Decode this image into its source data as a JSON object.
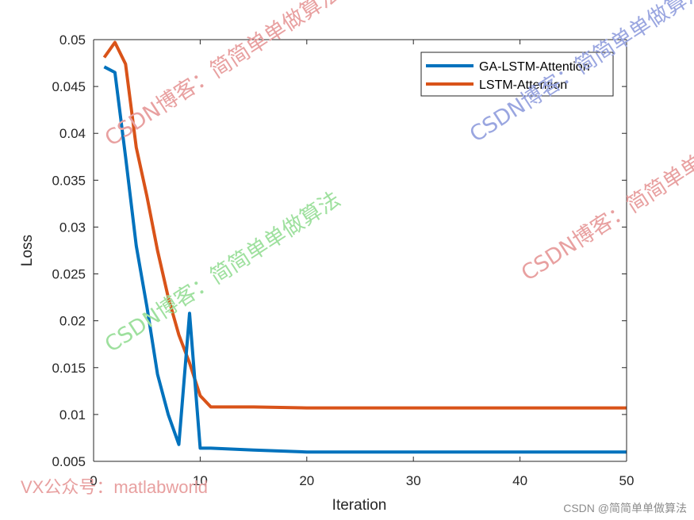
{
  "colors": {
    "ga_series": "#0072BD",
    "lstm_series": "#D95319",
    "axis": "#262626",
    "watermark_red": "#e8a0a0",
    "watermark_green": "#9ee09e",
    "watermark_blue": "#9aa6e0"
  },
  "chart_data": {
    "type": "line",
    "xlabel": "Iteration",
    "ylabel": "Loss",
    "xlim": [
      0,
      50
    ],
    "ylim": [
      0.005,
      0.05
    ],
    "xticks": [
      0,
      10,
      20,
      30,
      40,
      50
    ],
    "xtick_labels": [
      "0",
      "10",
      "20",
      "30",
      "40",
      "50"
    ],
    "yticks": [
      0.005,
      0.01,
      0.015,
      0.02,
      0.025,
      0.03,
      0.035,
      0.04,
      0.045,
      0.05
    ],
    "ytick_labels": [
      "0.005",
      "0.01",
      "0.015",
      "0.02",
      "0.025",
      "0.03",
      "0.035",
      "0.04",
      "0.045",
      "0.05"
    ],
    "grid": false,
    "legend_position": "top-right",
    "series": [
      {
        "name": "GA-LSTM-Attention",
        "color": "#0072BD",
        "x": [
          1,
          2,
          3,
          4,
          5,
          6,
          7,
          8,
          9,
          10,
          11,
          15,
          20,
          30,
          40,
          50
        ],
        "y": [
          0.0471,
          0.0465,
          0.0375,
          0.028,
          0.0215,
          0.0143,
          0.01,
          0.0068,
          0.0208,
          0.0064,
          0.0064,
          0.0062,
          0.006,
          0.006,
          0.006,
          0.006
        ]
      },
      {
        "name": "LSTM-Attention",
        "color": "#D95319",
        "x": [
          1,
          2,
          3,
          4,
          5,
          6,
          7,
          8,
          9,
          10,
          11,
          15,
          20,
          30,
          40,
          50
        ],
        "y": [
          0.0481,
          0.0497,
          0.0474,
          0.0385,
          0.0333,
          0.0275,
          0.0225,
          0.0185,
          0.0155,
          0.012,
          0.0108,
          0.0108,
          0.0107,
          0.0107,
          0.0107,
          0.0107
        ]
      }
    ]
  },
  "watermarks": [
    {
      "text": "CSDN博客：简简单单做算法",
      "color": "#e8a0a0"
    },
    {
      "text": "CSDN博客：简简单单做算法",
      "color": "#9aa6e0"
    },
    {
      "text": "CSDN博客：简简单单做算法",
      "color": "#9ee09e"
    },
    {
      "text": "CSDN博客：简简单单做算法",
      "color": "#e8a0a0"
    }
  ],
  "footer": {
    "vx_text": "VX公众号：matlabworld",
    "csdn_text": "CSDN @简简单单做算法"
  }
}
